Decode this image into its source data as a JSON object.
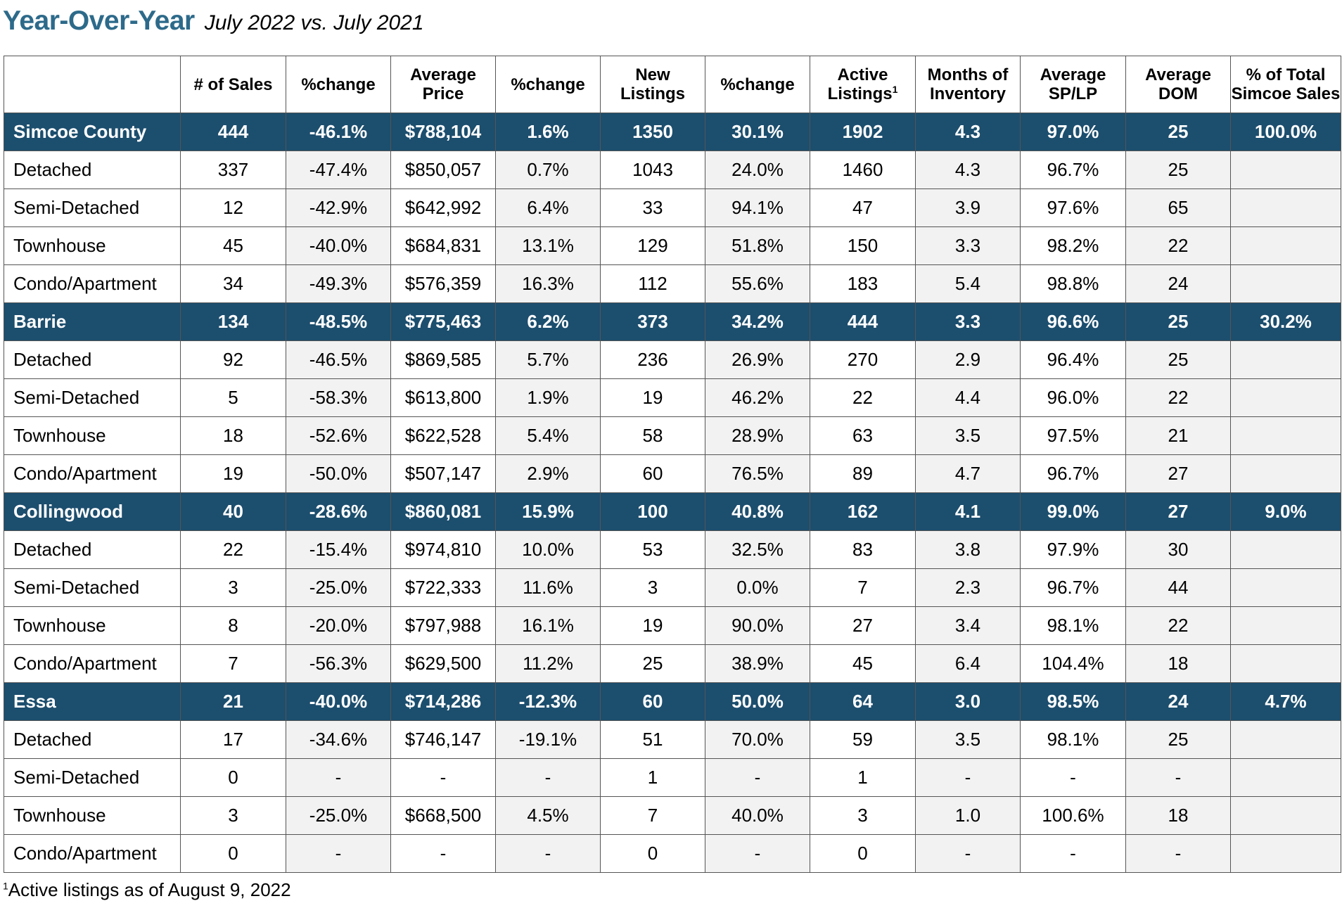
{
  "header": {
    "title": "Year-Over-Year",
    "subtitle": "July 2022 vs. July 2021"
  },
  "table": {
    "columns": [
      "",
      "# of Sales",
      "%change",
      "Average Price",
      "%change",
      "New Listings",
      "%change",
      "Active Listings",
      "Months of Inventory",
      "Average SP/LP",
      "Average DOM",
      "% of Total Simcoe Sales"
    ],
    "active_listings_footnote_mark": "1",
    "rows": [
      {
        "type": "group",
        "cells": [
          "Simcoe County",
          "444",
          "-46.1%",
          "$788,104",
          "1.6%",
          "1350",
          "30.1%",
          "1902",
          "4.3",
          "97.0%",
          "25",
          "100.0%"
        ]
      },
      {
        "type": "sub",
        "cells": [
          "Detached",
          "337",
          "-47.4%",
          "$850,057",
          "0.7%",
          "1043",
          "24.0%",
          "1460",
          "4.3",
          "96.7%",
          "25",
          ""
        ]
      },
      {
        "type": "sub",
        "cells": [
          "Semi-Detached",
          "12",
          "-42.9%",
          "$642,992",
          "6.4%",
          "33",
          "94.1%",
          "47",
          "3.9",
          "97.6%",
          "65",
          ""
        ]
      },
      {
        "type": "sub",
        "cells": [
          "Townhouse",
          "45",
          "-40.0%",
          "$684,831",
          "13.1%",
          "129",
          "51.8%",
          "150",
          "3.3",
          "98.2%",
          "22",
          ""
        ]
      },
      {
        "type": "sub",
        "cells": [
          "Condo/Apartment",
          "34",
          "-49.3%",
          "$576,359",
          "16.3%",
          "112",
          "55.6%",
          "183",
          "5.4",
          "98.8%",
          "24",
          ""
        ]
      },
      {
        "type": "group",
        "cells": [
          "Barrie",
          "134",
          "-48.5%",
          "$775,463",
          "6.2%",
          "373",
          "34.2%",
          "444",
          "3.3",
          "96.6%",
          "25",
          "30.2%"
        ]
      },
      {
        "type": "sub",
        "cells": [
          "Detached",
          "92",
          "-46.5%",
          "$869,585",
          "5.7%",
          "236",
          "26.9%",
          "270",
          "2.9",
          "96.4%",
          "25",
          ""
        ]
      },
      {
        "type": "sub",
        "cells": [
          "Semi-Detached",
          "5",
          "-58.3%",
          "$613,800",
          "1.9%",
          "19",
          "46.2%",
          "22",
          "4.4",
          "96.0%",
          "22",
          ""
        ]
      },
      {
        "type": "sub",
        "cells": [
          "Townhouse",
          "18",
          "-52.6%",
          "$622,528",
          "5.4%",
          "58",
          "28.9%",
          "63",
          "3.5",
          "97.5%",
          "21",
          ""
        ]
      },
      {
        "type": "sub",
        "cells": [
          "Condo/Apartment",
          "19",
          "-50.0%",
          "$507,147",
          "2.9%",
          "60",
          "76.5%",
          "89",
          "4.7",
          "96.7%",
          "27",
          ""
        ]
      },
      {
        "type": "group",
        "cells": [
          "Collingwood",
          "40",
          "-28.6%",
          "$860,081",
          "15.9%",
          "100",
          "40.8%",
          "162",
          "4.1",
          "99.0%",
          "27",
          "9.0%"
        ]
      },
      {
        "type": "sub",
        "cells": [
          "Detached",
          "22",
          "-15.4%",
          "$974,810",
          "10.0%",
          "53",
          "32.5%",
          "83",
          "3.8",
          "97.9%",
          "30",
          ""
        ]
      },
      {
        "type": "sub",
        "cells": [
          "Semi-Detached",
          "3",
          "-25.0%",
          "$722,333",
          "11.6%",
          "3",
          "0.0%",
          "7",
          "2.3",
          "96.7%",
          "44",
          ""
        ]
      },
      {
        "type": "sub",
        "cells": [
          "Townhouse",
          "8",
          "-20.0%",
          "$797,988",
          "16.1%",
          "19",
          "90.0%",
          "27",
          "3.4",
          "98.1%",
          "22",
          ""
        ]
      },
      {
        "type": "sub",
        "cells": [
          "Condo/Apartment",
          "7",
          "-56.3%",
          "$629,500",
          "11.2%",
          "25",
          "38.9%",
          "45",
          "6.4",
          "104.4%",
          "18",
          ""
        ]
      },
      {
        "type": "group",
        "cells": [
          "Essa",
          "21",
          "-40.0%",
          "$714,286",
          "-12.3%",
          "60",
          "50.0%",
          "64",
          "3.0",
          "98.5%",
          "24",
          "4.7%"
        ]
      },
      {
        "type": "sub",
        "cells": [
          "Detached",
          "17",
          "-34.6%",
          "$746,147",
          "-19.1%",
          "51",
          "70.0%",
          "59",
          "3.5",
          "98.1%",
          "25",
          ""
        ]
      },
      {
        "type": "sub",
        "cells": [
          "Semi-Detached",
          "0",
          "-",
          "-",
          "-",
          "1",
          "-",
          "1",
          "-",
          "-",
          "-",
          ""
        ]
      },
      {
        "type": "sub",
        "cells": [
          "Townhouse",
          "3",
          "-25.0%",
          "$668,500",
          "4.5%",
          "7",
          "40.0%",
          "3",
          "1.0",
          "100.6%",
          "18",
          ""
        ]
      },
      {
        "type": "sub",
        "cells": [
          "Condo/Apartment",
          "0",
          "-",
          "-",
          "-",
          "0",
          "-",
          "0",
          "-",
          "-",
          "-",
          ""
        ]
      }
    ]
  },
  "footnote": {
    "mark": "1",
    "text": "Active listings as of August 9, 2022"
  }
}
